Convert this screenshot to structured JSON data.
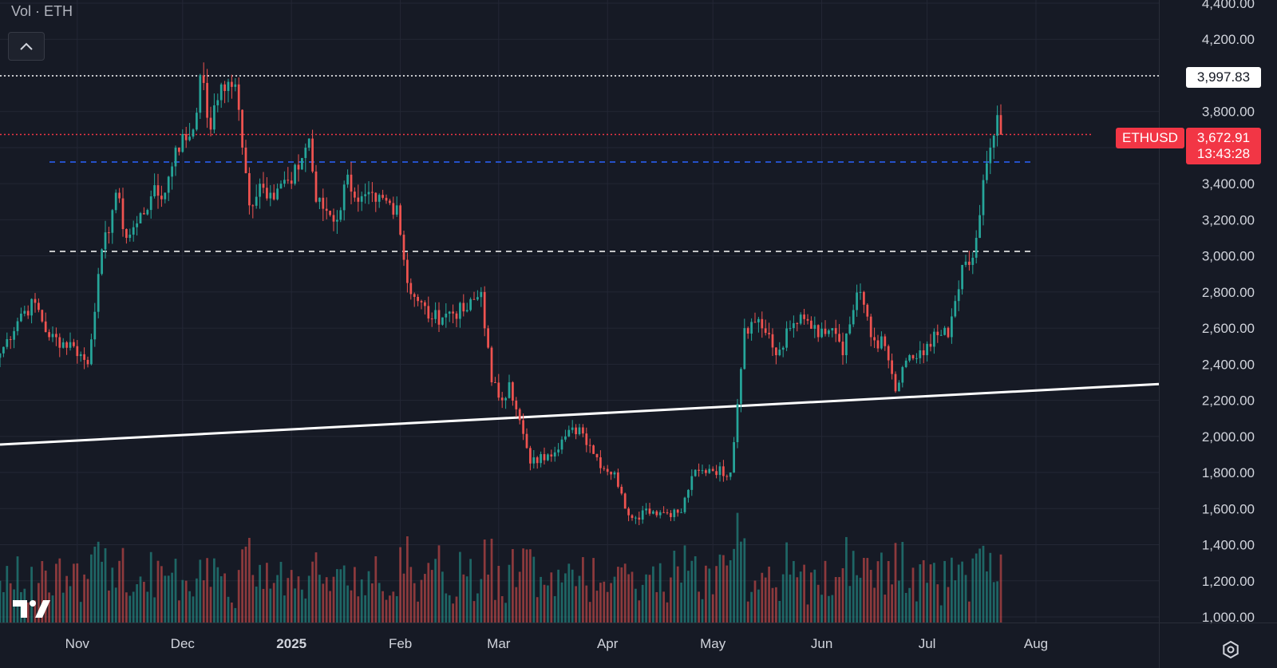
{
  "header": {
    "volume_label": "Vol · ETH"
  },
  "symbol": {
    "ticker": "ETHUSD",
    "last_price": "3,672.91",
    "countdown": "13:43:28",
    "level_label": "3,997.83"
  },
  "colors": {
    "background": "#161a25",
    "up": "#26a69a",
    "down": "#ef5350",
    "grid": "#232735",
    "axis_text": "#d1d4dc"
  },
  "icons": {
    "collapse": "chevron-up-icon",
    "logo": "tradingview-logo-icon",
    "settings": "gear-icon"
  },
  "chart_data": {
    "type": "candlestick",
    "title": "",
    "xlabel": "",
    "ylabel": "",
    "ylim": [
      1000,
      4400
    ],
    "y_ticks": [
      "4,400.00",
      "4,200.00",
      "4,000.00",
      "3,800.00",
      "3,600.00",
      "3,400.00",
      "3,200.00",
      "3,000.00",
      "2,800.00",
      "2,600.00",
      "2,400.00",
      "2,200.00",
      "2,000.00",
      "1,800.00",
      "1,600.00",
      "1,400.00",
      "1,200.00",
      "1,000.00"
    ],
    "x_ticks": [
      "Nov",
      "Dec",
      "2025",
      "Feb",
      "Mar",
      "Apr",
      "May",
      "Jun",
      "Jul",
      "Aug"
    ],
    "x_tick_dates": [
      "2024-11-01",
      "2024-12-01",
      "2025-01-01",
      "2025-02-01",
      "2025-03-01",
      "2025-04-01",
      "2025-05-01",
      "2025-06-01",
      "2025-07-01",
      "2025-08-01"
    ],
    "x_range": [
      "2024-10-10",
      "2025-09-05"
    ],
    "grid": true,
    "anchors": [
      [
        "2024-10-10",
        2460
      ],
      [
        "2024-10-16",
        2680
      ],
      [
        "2024-10-20",
        2740
      ],
      [
        "2024-10-24",
        2550
      ],
      [
        "2024-10-31",
        2500
      ],
      [
        "2024-11-04",
        2400
      ],
      [
        "2024-11-07",
        2900
      ],
      [
        "2024-11-12",
        3350
      ],
      [
        "2024-11-15",
        3100
      ],
      [
        "2024-11-18",
        3180
      ],
      [
        "2024-11-22",
        3330
      ],
      [
        "2024-11-26",
        3350
      ],
      [
        "2024-11-29",
        3600
      ],
      [
        "2024-12-04",
        3700
      ],
      [
        "2024-12-06",
        4000
      ],
      [
        "2024-12-09",
        3700
      ],
      [
        "2024-12-12",
        3950
      ],
      [
        "2024-12-16",
        3950
      ],
      [
        "2024-12-18",
        3600
      ],
      [
        "2024-12-20",
        3280
      ],
      [
        "2024-12-23",
        3400
      ],
      [
        "2024-12-26",
        3350
      ],
      [
        "2024-12-29",
        3400
      ],
      [
        "2025-01-01",
        3400
      ],
      [
        "2025-01-06",
        3650
      ],
      [
        "2025-01-08",
        3300
      ],
      [
        "2025-01-11",
        3250
      ],
      [
        "2025-01-14",
        3200
      ],
      [
        "2025-01-17",
        3450
      ],
      [
        "2025-01-20",
        3300
      ],
      [
        "2025-01-25",
        3300
      ],
      [
        "2025-01-31",
        3280
      ],
      [
        "2025-02-03",
        2850
      ],
      [
        "2025-02-06",
        2750
      ],
      [
        "2025-02-10",
        2650
      ],
      [
        "2025-02-14",
        2680
      ],
      [
        "2025-02-20",
        2700
      ],
      [
        "2025-02-24",
        2800
      ],
      [
        "2025-02-27",
        2300
      ],
      [
        "2025-03-02",
        2200
      ],
      [
        "2025-03-04",
        2300
      ],
      [
        "2025-03-06",
        2150
      ],
      [
        "2025-03-10",
        1850
      ],
      [
        "2025-03-15",
        1900
      ],
      [
        "2025-03-20",
        2000
      ],
      [
        "2025-03-24",
        2050
      ],
      [
        "2025-03-27",
        1950
      ],
      [
        "2025-03-31",
        1820
      ],
      [
        "2025-04-03",
        1800
      ],
      [
        "2025-04-06",
        1600
      ],
      [
        "2025-04-09",
        1550
      ],
      [
        "2025-04-12",
        1600
      ],
      [
        "2025-04-16",
        1580
      ],
      [
        "2025-04-22",
        1580
      ],
      [
        "2025-04-25",
        1780
      ],
      [
        "2025-04-30",
        1820
      ],
      [
        "2025-05-06",
        1800
      ],
      [
        "2025-05-08",
        2180
      ],
      [
        "2025-05-10",
        2600
      ],
      [
        "2025-05-14",
        2650
      ],
      [
        "2025-05-19",
        2450
      ],
      [
        "2025-05-23",
        2600
      ],
      [
        "2025-05-27",
        2650
      ],
      [
        "2025-05-31",
        2550
      ],
      [
        "2025-06-04",
        2600
      ],
      [
        "2025-06-07",
        2450
      ],
      [
        "2025-06-10",
        2700
      ],
      [
        "2025-06-12",
        2800
      ],
      [
        "2025-06-15",
        2550
      ],
      [
        "2025-06-19",
        2500
      ],
      [
        "2025-06-22",
        2250
      ],
      [
        "2025-06-25",
        2420
      ],
      [
        "2025-06-30",
        2450
      ],
      [
        "2025-07-03",
        2580
      ],
      [
        "2025-07-07",
        2550
      ],
      [
        "2025-07-09",
        2750
      ],
      [
        "2025-07-11",
        2950
      ],
      [
        "2025-07-13",
        2950
      ],
      [
        "2025-07-15",
        3100
      ],
      [
        "2025-07-17",
        3420
      ],
      [
        "2025-07-19",
        3600
      ],
      [
        "2025-07-21",
        3780
      ],
      [
        "2025-07-22",
        3672
      ]
    ],
    "horizontal_levels": [
      {
        "value": 3997.83,
        "style": "dotted",
        "color": "#ffffff"
      },
      {
        "value": 3672.91,
        "style": "dotted",
        "color": "#f23645"
      },
      {
        "value": 3520,
        "style": "dashed",
        "color": "#2962ff"
      },
      {
        "value": 3025,
        "style": "dashed",
        "color": "#ffffff"
      }
    ],
    "trendline": {
      "start": [
        "2024-10-10",
        1955
      ],
      "end": [
        "2025-09-05",
        2290
      ],
      "color": "#ffffff"
    },
    "volume_panel": true
  }
}
